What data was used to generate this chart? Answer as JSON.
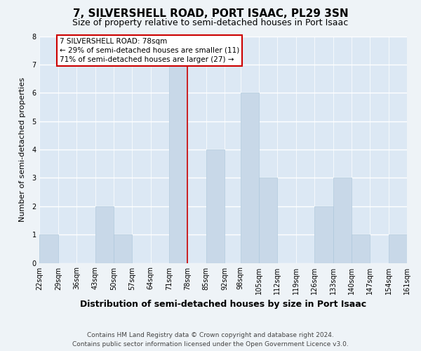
{
  "title": "7, SILVERSHELL ROAD, PORT ISAAC, PL29 3SN",
  "subtitle": "Size of property relative to semi-detached houses in Port Isaac",
  "xlabel": "Distribution of semi-detached houses by size in Port Isaac",
  "ylabel": "Number of semi-detached properties",
  "footer_line1": "Contains HM Land Registry data © Crown copyright and database right 2024.",
  "footer_line2": "Contains public sector information licensed under the Open Government Licence v3.0.",
  "bin_edges": [
    22,
    29,
    36,
    43,
    50,
    57,
    64,
    71,
    78,
    85,
    92,
    98,
    105,
    112,
    119,
    126,
    133,
    140,
    147,
    154,
    161
  ],
  "bin_labels": [
    "22sqm",
    "29sqm",
    "36sqm",
    "43sqm",
    "50sqm",
    "57sqm",
    "64sqm",
    "71sqm",
    "78sqm",
    "85sqm",
    "92sqm",
    "98sqm",
    "105sqm",
    "112sqm",
    "119sqm",
    "126sqm",
    "133sqm",
    "140sqm",
    "147sqm",
    "154sqm",
    "161sqm"
  ],
  "counts": [
    1,
    0,
    0,
    2,
    1,
    0,
    0,
    7,
    0,
    4,
    0,
    6,
    3,
    0,
    0,
    2,
    3,
    1,
    0,
    1
  ],
  "bar_color": "#c8d8e8",
  "bar_edge_color": "#aec8dc",
  "bg_fill_color": "#dce8f0",
  "property_line_color": "#cc0000",
  "annotation_title": "7 SILVERSHELL ROAD: 78sqm",
  "annotation_line2": "← 29% of semi-detached houses are smaller (11)",
  "annotation_line3": "71% of semi-detached houses are larger (27) →",
  "annotation_box_color": "#ffffff",
  "annotation_box_edge": "#cc0000",
  "ylim": [
    0,
    8
  ],
  "yticks": [
    0,
    1,
    2,
    3,
    4,
    5,
    6,
    7,
    8
  ],
  "background_color": "#eef3f7",
  "plot_bg_color": "#dce8f4",
  "grid_color": "#ffffff",
  "title_fontsize": 11,
  "subtitle_fontsize": 9,
  "xlabel_fontsize": 9,
  "ylabel_fontsize": 8,
  "tick_fontsize": 7,
  "annotation_fontsize": 7.5,
  "footer_fontsize": 6.5
}
